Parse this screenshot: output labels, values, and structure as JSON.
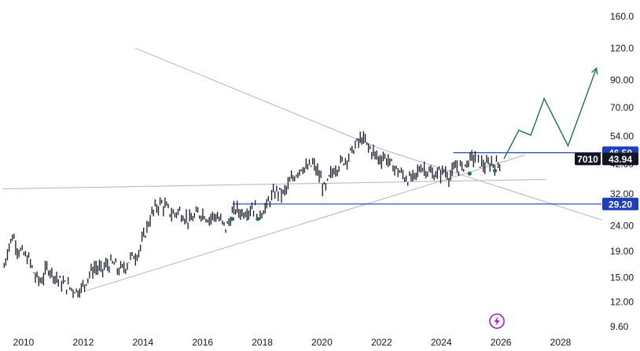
{
  "chart_data": {
    "type": "candlestick",
    "symbol_label": "7010",
    "price_axis": {
      "scale": "log",
      "ticks": [
        "160.0",
        "120.0",
        "90.00",
        "70.00",
        "54.00",
        "42.00",
        "32.00",
        "24.00",
        "19.00",
        "15.00",
        "12.00",
        "9.60"
      ],
      "tick_values": [
        160,
        120,
        90,
        70,
        54,
        42,
        32,
        24,
        19,
        15,
        12,
        9.6
      ],
      "range": [
        9.0,
        180.0
      ]
    },
    "time_axis": {
      "ticks": [
        "2010",
        "2012",
        "2014",
        "2016",
        "2018",
        "2020",
        "2022",
        "2024",
        "2026",
        "2028"
      ],
      "tick_values": [
        2010,
        2012,
        2014,
        2016,
        2018,
        2020,
        2022,
        2024,
        2026,
        2028
      ],
      "range": [
        2009.3,
        2029.7
      ]
    },
    "price_series": {
      "color": "#131722",
      "points": [
        [
          2009.35,
          16.5
        ],
        [
          2009.5,
          20
        ],
        [
          2009.65,
          22
        ],
        [
          2009.8,
          19.5
        ],
        [
          2010.0,
          18.5
        ],
        [
          2010.2,
          17.5
        ],
        [
          2010.4,
          15
        ],
        [
          2010.6,
          14.5
        ],
        [
          2010.8,
          16.5
        ],
        [
          2011.0,
          15.5
        ],
        [
          2011.2,
          14.5
        ],
        [
          2011.4,
          14
        ],
        [
          2011.6,
          13.6
        ],
        [
          2011.8,
          13.3
        ],
        [
          2012.0,
          13.8
        ],
        [
          2012.2,
          15.5
        ],
        [
          2012.4,
          16.5
        ],
        [
          2012.6,
          16
        ],
        [
          2012.8,
          16.8
        ],
        [
          2013.0,
          17
        ],
        [
          2013.2,
          16
        ],
        [
          2013.4,
          16.5
        ],
        [
          2013.6,
          18
        ],
        [
          2013.8,
          18.5
        ],
        [
          2014.0,
          21
        ],
        [
          2014.2,
          25
        ],
        [
          2014.4,
          28
        ],
        [
          2014.6,
          29.5
        ],
        [
          2014.8,
          28
        ],
        [
          2015.0,
          26.5
        ],
        [
          2015.2,
          27.5
        ],
        [
          2015.4,
          26
        ],
        [
          2015.6,
          25
        ],
        [
          2015.8,
          26.5
        ],
        [
          2016.0,
          27
        ],
        [
          2016.2,
          25.5
        ],
        [
          2016.4,
          26.5
        ],
        [
          2016.6,
          25
        ],
        [
          2016.8,
          23.5
        ],
        [
          2016.95,
          26
        ],
        [
          2017.1,
          28
        ],
        [
          2017.3,
          27
        ],
        [
          2017.5,
          27.5
        ],
        [
          2017.7,
          28.5
        ],
        [
          2017.9,
          27
        ],
        [
          2018.1,
          28
        ],
        [
          2018.3,
          31
        ],
        [
          2018.5,
          33
        ],
        [
          2018.7,
          32
        ],
        [
          2018.9,
          35
        ],
        [
          2019.1,
          38
        ],
        [
          2019.3,
          41
        ],
        [
          2019.5,
          40
        ],
        [
          2019.7,
          42
        ],
        [
          2019.9,
          38
        ],
        [
          2020.1,
          33
        ],
        [
          2020.25,
          37
        ],
        [
          2020.4,
          40
        ],
        [
          2020.6,
          42
        ],
        [
          2020.8,
          44
        ],
        [
          2021.0,
          47
        ],
        [
          2021.2,
          51
        ],
        [
          2021.35,
          53
        ],
        [
          2021.5,
          50
        ],
        [
          2021.7,
          47
        ],
        [
          2021.9,
          44
        ],
        [
          2022.1,
          45
        ],
        [
          2022.3,
          42
        ],
        [
          2022.5,
          40
        ],
        [
          2022.7,
          38
        ],
        [
          2022.9,
          36.5
        ],
        [
          2023.1,
          37
        ],
        [
          2023.3,
          41
        ],
        [
          2023.5,
          40
        ],
        [
          2023.7,
          38
        ],
        [
          2023.9,
          38.5
        ],
        [
          2024.1,
          39.5
        ],
        [
          2024.3,
          37.5
        ],
        [
          2024.5,
          41
        ],
        [
          2024.7,
          40.5
        ],
        [
          2024.9,
          43
        ],
        [
          2025.1,
          45
        ],
        [
          2025.3,
          42.5
        ],
        [
          2025.5,
          41
        ],
        [
          2025.7,
          42.5
        ],
        [
          2025.85,
          41.5
        ],
        [
          2026.0,
          43.94
        ]
      ]
    },
    "horizontal_levels": [
      {
        "value": 46.5,
        "label": "46.50",
        "color": "#1e3fb8"
      },
      {
        "value": 29.2,
        "label": "29.20",
        "color": "#1e3fb8"
      }
    ],
    "last_price": {
      "value": 43.94,
      "label": "43.94"
    },
    "trendlines": [
      {
        "from": [
          2009.3,
          33.5
        ],
        "to": [
          2027.5,
          36.5
        ],
        "color": "#b2b5be"
      },
      {
        "from": [
          2013.75,
          120.0
        ],
        "to": [
          2022.0,
          48.0
        ],
        "color": "#b2b5be"
      },
      {
        "from": [
          2012.1,
          13.3
        ],
        "to": [
          2026.8,
          45.5
        ],
        "color": "#b2b5be"
      },
      {
        "from": [
          2022.0,
          48.0
        ],
        "to": [
          2029.5,
          25.0
        ],
        "color": "#b2b5be"
      }
    ],
    "projection": {
      "color": "#1f6f5c",
      "points": [
        [
          2026.1,
          44.0
        ],
        [
          2026.6,
          57.0
        ],
        [
          2027.0,
          54.5
        ],
        [
          2027.45,
          76.0
        ],
        [
          2028.25,
          49.5
        ],
        [
          2029.2,
          100.0
        ]
      ]
    },
    "pivot_markers": {
      "color": "#1f6f5c",
      "points": [
        [
          2017.0,
          25.5
        ],
        [
          2017.85,
          25.5
        ],
        [
          2024.95,
          38.5
        ],
        [
          2025.8,
          39.5
        ]
      ]
    },
    "bottom_icon": "lightning-icon"
  }
}
